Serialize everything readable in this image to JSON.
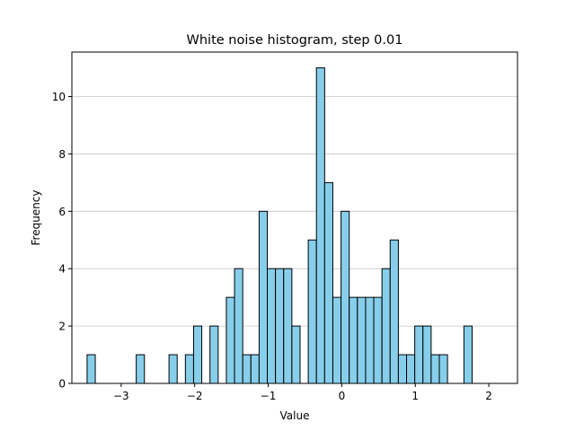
{
  "chart_data": {
    "type": "bar",
    "title": "White noise histogram, step 0.01",
    "xlabel": "Value",
    "ylabel": "Frequency",
    "xlim": [
      -3.67,
      2.39
    ],
    "ylim": [
      0,
      11.55
    ],
    "bin_width": 0.1114,
    "bin_start": -3.4632,
    "values": [
      1,
      0,
      0,
      0,
      0,
      0,
      1,
      0,
      0,
      0,
      1,
      0,
      1,
      2,
      0,
      2,
      0,
      3,
      4,
      1,
      1,
      6,
      4,
      4,
      4,
      2,
      0,
      5,
      11,
      7,
      3,
      6,
      3,
      3,
      3,
      3,
      4,
      5,
      1,
      1,
      2,
      2,
      1,
      1,
      0,
      0,
      2
    ],
    "xticks": [
      -3,
      -2,
      -1,
      0,
      1,
      2
    ],
    "xtick_labels": [
      "−3",
      "−2",
      "−1",
      "0",
      "1",
      "2"
    ],
    "yticks": [
      0,
      2,
      4,
      6,
      8,
      10
    ],
    "ytick_labels": [
      "0",
      "2",
      "4",
      "6",
      "8",
      "10"
    ],
    "grid": "y",
    "colors": {
      "bar_fill": "#87ceeb",
      "bar_edge": "#000000",
      "grid": "#c8c8c8"
    }
  }
}
